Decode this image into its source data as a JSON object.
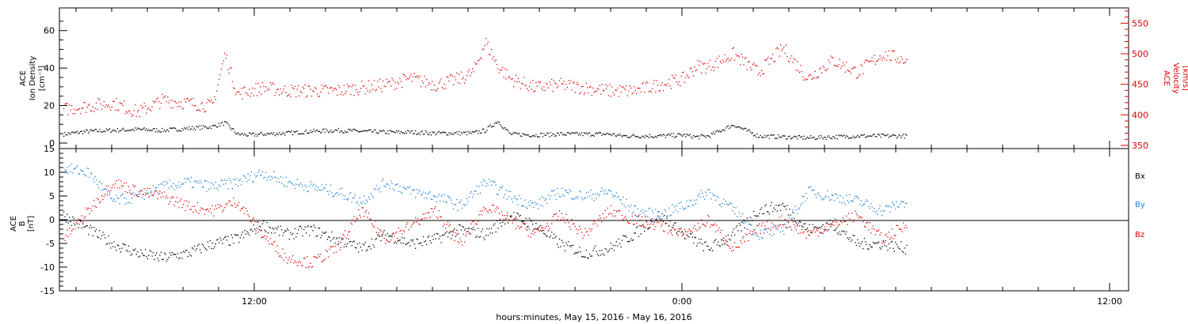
{
  "chart_data": [
    {
      "type": "scatter",
      "title": "",
      "ylabel": [
        "ACE",
        "Ion Density",
        "[cm⁻³]"
      ],
      "ylabel_right": [
        "ACE",
        "Velocity",
        "[km/s]"
      ],
      "ylim": [
        0,
        70
      ],
      "ylim_right": [
        350,
        575
      ],
      "y_ticks": [
        "0",
        "20",
        "40",
        "60"
      ],
      "y_ticks_right": [
        "350",
        "400",
        "450",
        "500",
        "550"
      ],
      "series": [
        {
          "axis": "left",
          "color": "#000000",
          "x": [
            0,
            1,
            2,
            3,
            4,
            5,
            6,
            6.5,
            7,
            7.5,
            8,
            9,
            10,
            11,
            12,
            13,
            14,
            15,
            16,
            16.5,
            17,
            17.5,
            18,
            19,
            20,
            21,
            22,
            22.5,
            23,
            24,
            25,
            25.5,
            26,
            27,
            28,
            29,
            30,
            31,
            32,
            33,
            34
          ],
          "values": [
            5,
            6.5,
            7,
            7.5,
            7,
            8,
            9,
            11,
            5,
            4.5,
            5,
            5.5,
            6.5,
            7,
            6.5,
            6,
            6,
            5.5,
            5.5,
            5.5,
            7,
            12,
            5,
            4.5,
            5,
            5,
            5,
            4,
            4,
            4,
            4.5,
            3.5,
            4,
            10,
            4,
            3.5,
            3,
            3.5,
            4,
            4,
            4
          ]
        },
        {
          "axis": "right",
          "color": "#e00000",
          "x": [
            0,
            1,
            2,
            3,
            4,
            5,
            6,
            6.5,
            7,
            7.5,
            8,
            9,
            10,
            11,
            12,
            13,
            14,
            15,
            16,
            16.5,
            17,
            17.5,
            18,
            19,
            20,
            21,
            22,
            22.5,
            23,
            24,
            25,
            25.5,
            26,
            27,
            28,
            29,
            30,
            31,
            32,
            33,
            34
          ],
          "values": [
            410,
            415,
            420,
            405,
            425,
            420,
            415,
            500,
            435,
            440,
            445,
            440,
            440,
            440,
            445,
            450,
            460,
            450,
            460,
            470,
            520,
            480,
            460,
            445,
            450,
            445,
            440,
            440,
            440,
            450,
            460,
            480,
            480,
            500,
            470,
            510,
            460,
            490,
            470,
            500,
            490
          ]
        }
      ]
    },
    {
      "type": "scatter",
      "title": "",
      "ylabel": [
        "ACE",
        "B",
        "[nT]"
      ],
      "ylim": [
        -15,
        15
      ],
      "y_ticks": [
        "-15",
        "-10",
        "-5",
        "0",
        "5",
        "10",
        "15"
      ],
      "legend": [
        "Bx",
        "By",
        "Bz"
      ],
      "series": [
        {
          "name": "Bx",
          "color": "#000000",
          "x": [
            0,
            1,
            2,
            3,
            4,
            5,
            6,
            7,
            8,
            9,
            10,
            11,
            12,
            13,
            14,
            15,
            16,
            17,
            18,
            19,
            20,
            21,
            22,
            23,
            24,
            25,
            26,
            27,
            28,
            29,
            30,
            31,
            32,
            33,
            34
          ],
          "values": [
            1,
            -2,
            -5,
            -7,
            -8,
            -7,
            -5,
            -4,
            -1,
            -3,
            -2,
            -4,
            -6,
            -3,
            -5,
            -4,
            -2,
            -3,
            1,
            -1,
            -5,
            -7,
            -6,
            -3,
            1,
            -3,
            -6,
            -3,
            2,
            3,
            -2,
            -1,
            -5,
            -5,
            -6
          ]
        },
        {
          "name": "By",
          "color": "#1c7fd6",
          "x": [
            0,
            1,
            2,
            3,
            4,
            5,
            6,
            7,
            8,
            9,
            10,
            11,
            12,
            13,
            14,
            15,
            16,
            17,
            18,
            19,
            20,
            21,
            22,
            23,
            24,
            25,
            26,
            27,
            28,
            29,
            30,
            31,
            32,
            33,
            34
          ],
          "values": [
            11,
            10,
            4,
            5,
            7,
            8,
            7,
            8,
            10,
            8,
            7,
            6,
            4,
            8,
            6,
            5,
            3,
            8,
            5,
            3,
            6,
            5,
            6,
            2,
            1,
            3,
            6,
            2,
            -3,
            -2,
            6,
            5,
            4,
            2,
            4
          ]
        },
        {
          "name": "Bz",
          "color": "#e00000",
          "x": [
            0,
            1,
            2,
            3,
            4,
            5,
            6,
            7,
            8,
            9,
            10,
            11,
            12,
            13,
            14,
            15,
            16,
            17,
            18,
            19,
            20,
            21,
            22,
            23,
            24,
            25,
            26,
            27,
            28,
            29,
            30,
            31,
            32,
            33,
            34
          ],
          "values": [
            -4,
            2,
            8,
            6,
            5,
            3,
            2,
            4,
            -3,
            -8,
            -9,
            -6,
            2,
            -4,
            -1,
            2,
            -5,
            3,
            0,
            -3,
            1,
            -3,
            2,
            0,
            -1,
            -3,
            0,
            -6,
            -2,
            0,
            -3,
            -1,
            1,
            -4,
            -1
          ]
        }
      ]
    }
  ],
  "x_axis": {
    "tick_labels": [
      "12:00",
      "0:00",
      "12:00"
    ],
    "title": "hours:minutes, May 15, 2016 - May 16, 2016"
  }
}
